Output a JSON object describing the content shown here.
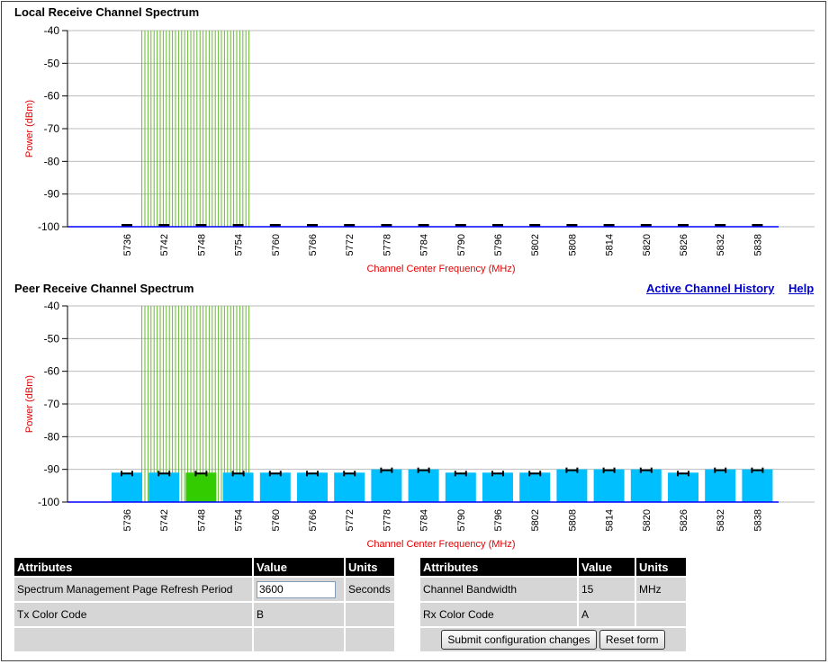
{
  "local_title": "Local Receive Channel Spectrum",
  "peer_title": "Peer Receive Channel Spectrum",
  "links": {
    "history": "Active Channel History",
    "help": "Help"
  },
  "colors": {
    "axis_label": "#e00000",
    "bar": "#00bfff",
    "active_bar": "#33cc00",
    "stripes": "#66bb33"
  },
  "chart_data": [
    {
      "type": "bar",
      "title": "Local Receive Channel Spectrum",
      "xlabel": "Channel Center Frequency (MHz)",
      "ylabel": "Power (dBm)",
      "ylim": [
        -100,
        -40
      ],
      "yticks": [
        -40,
        -50,
        -60,
        -70,
        -80,
        -90,
        -100
      ],
      "categories": [
        "5736",
        "5742",
        "5748",
        "5754",
        "5760",
        "5766",
        "5772",
        "5778",
        "5784",
        "5790",
        "5796",
        "5802",
        "5808",
        "5814",
        "5820",
        "5826",
        "5832",
        "5838"
      ],
      "values": [
        -100,
        -100,
        -100,
        -100,
        -100,
        -100,
        -100,
        -100,
        -100,
        -100,
        -100,
        -100,
        -100,
        -100,
        -100,
        -100,
        -100,
        -100
      ],
      "band_mhz": [
        5742,
        5754
      ]
    },
    {
      "type": "bar",
      "title": "Peer Receive Channel Spectrum",
      "xlabel": "Channel Center Frequency (MHz)",
      "ylabel": "Power (dBm)",
      "ylim": [
        -100,
        -40
      ],
      "yticks": [
        -40,
        -50,
        -60,
        -70,
        -80,
        -90,
        -100
      ],
      "categories": [
        "5736",
        "5742",
        "5748",
        "5754",
        "5760",
        "5766",
        "5772",
        "5778",
        "5784",
        "5790",
        "5796",
        "5802",
        "5808",
        "5814",
        "5820",
        "5826",
        "5832",
        "5838"
      ],
      "values": [
        -91,
        -91,
        -91,
        -91,
        -91,
        -91,
        -91,
        -90,
        -90,
        -91,
        -91,
        -91,
        -90,
        -90,
        -90,
        -91,
        -90,
        -90
      ],
      "active_category": "5748",
      "band_mhz": [
        5742,
        5754
      ]
    }
  ],
  "left_table": {
    "headers": [
      "Attributes",
      "Value",
      "Units"
    ],
    "rows": [
      {
        "attr": "Spectrum Management Page Refresh Period",
        "value": "3600",
        "units": "Seconds"
      },
      {
        "attr": "Tx Color Code",
        "value": "B",
        "units": ""
      }
    ]
  },
  "right_table": {
    "headers": [
      "Attributes",
      "Value",
      "Units"
    ],
    "rows": [
      {
        "attr": "Channel Bandwidth",
        "value": "15",
        "units": "MHz"
      },
      {
        "attr": "Rx Color Code",
        "value": "A",
        "units": ""
      }
    ]
  },
  "buttons": {
    "submit": "Submit configuration changes",
    "reset": "Reset form"
  }
}
